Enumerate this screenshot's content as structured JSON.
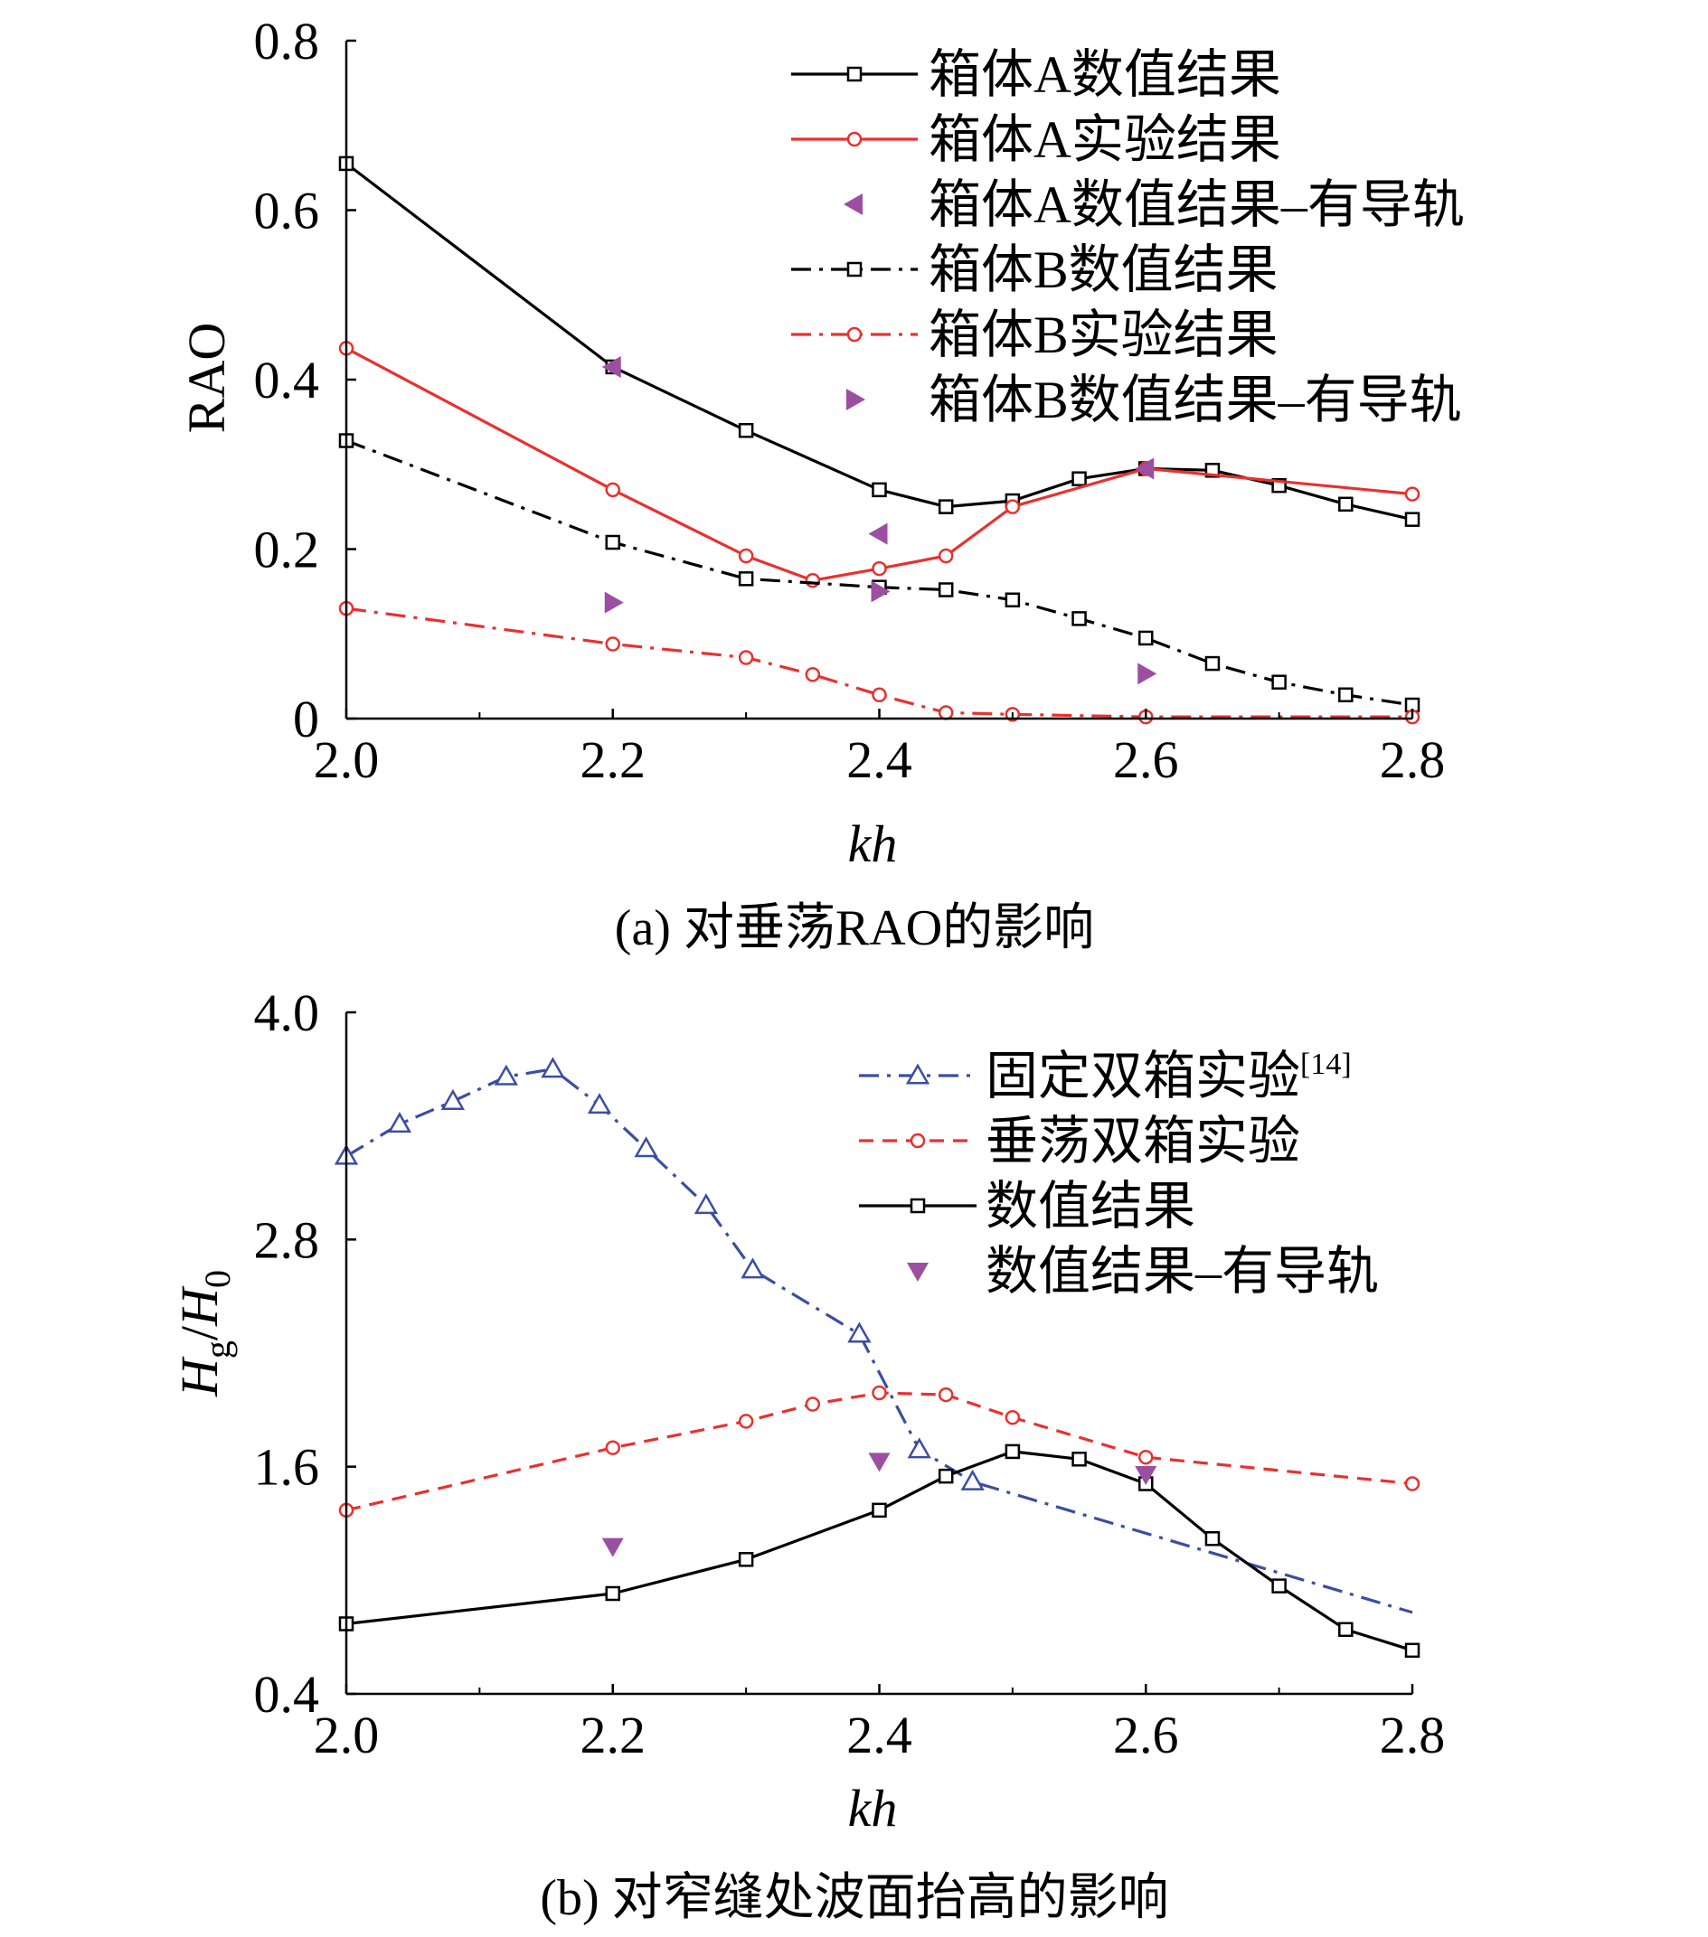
{
  "chart_data": [
    {
      "type": "line",
      "id": "a",
      "caption": "(a) 对垂荡RAO的影响",
      "xlabel": "kh",
      "ylabel": "RAO",
      "xlim": [
        2.0,
        2.8
      ],
      "ylim": [
        0,
        0.8
      ],
      "xticks": [
        2.0,
        2.2,
        2.4,
        2.6,
        2.8
      ],
      "xtick_labels": [
        "2.0",
        "2.2",
        "2.4",
        "2.6",
        "2.8"
      ],
      "yticks": [
        0,
        0.2,
        0.4,
        0.6,
        0.8
      ],
      "ytick_labels": [
        "0",
        "0.2",
        "0.4",
        "0.6",
        "0.8"
      ],
      "legend_position": "top-right",
      "series": [
        {
          "name": "箱体A数值结果",
          "color": "#000000",
          "line": "solid",
          "marker": "square",
          "x": [
            2.0,
            2.2,
            2.3,
            2.4,
            2.45,
            2.5,
            2.55,
            2.6,
            2.65,
            2.7,
            2.75,
            2.8
          ],
          "y": [
            0.655,
            0.415,
            0.34,
            0.27,
            0.25,
            0.257,
            0.283,
            0.295,
            0.293,
            0.275,
            0.253,
            0.235
          ]
        },
        {
          "name": "箱体A实验结果",
          "color": "#e8312f",
          "line": "solid",
          "marker": "circle",
          "x": [
            2.0,
            2.2,
            2.3,
            2.35,
            2.4,
            2.45,
            2.5,
            2.6,
            2.8
          ],
          "y": [
            0.437,
            0.27,
            0.192,
            0.163,
            0.177,
            0.192,
            0.25,
            0.295,
            0.265
          ]
        },
        {
          "name": "箱体A数值结果–有导轨",
          "color": "#9c4fa0",
          "line": "none",
          "marker": "triangle-left",
          "x": [
            2.2,
            2.4,
            2.6
          ],
          "y": [
            0.415,
            0.218,
            0.295
          ]
        },
        {
          "name": "箱体B数值结果",
          "color": "#000000",
          "line": "dashdot",
          "marker": "square",
          "x": [
            2.0,
            2.2,
            2.3,
            2.4,
            2.45,
            2.5,
            2.55,
            2.6,
            2.65,
            2.7,
            2.75,
            2.8
          ],
          "y": [
            0.328,
            0.208,
            0.165,
            0.155,
            0.152,
            0.14,
            0.118,
            0.095,
            0.065,
            0.043,
            0.028,
            0.016
          ]
        },
        {
          "name": "箱体B实验结果",
          "color": "#e8312f",
          "line": "dashdot",
          "marker": "circle",
          "x": [
            2.0,
            2.2,
            2.3,
            2.35,
            2.4,
            2.45,
            2.5,
            2.6,
            2.8
          ],
          "y": [
            0.13,
            0.088,
            0.072,
            0.052,
            0.028,
            0.007,
            0.005,
            0.002,
            0.002
          ]
        },
        {
          "name": "箱体B数值结果–有导轨",
          "color": "#9c4fa0",
          "line": "none",
          "marker": "triangle-right",
          "x": [
            2.2,
            2.4,
            2.6
          ],
          "y": [
            0.137,
            0.15,
            0.053
          ]
        }
      ]
    },
    {
      "type": "line",
      "id": "b",
      "caption": "(b) 对窄缝处波面抬高的影响",
      "xlabel": "kh",
      "ylabel_main": "H",
      "ylabel_sub": "g",
      "ylabel_slash": "/",
      "ylabel_main2": "H",
      "ylabel_sub2": "0",
      "xlim": [
        2.0,
        2.8
      ],
      "ylim": [
        0.4,
        4.0
      ],
      "xticks": [
        2.0,
        2.2,
        2.4,
        2.6,
        2.8
      ],
      "xtick_labels": [
        "2.0",
        "2.2",
        "2.4",
        "2.6",
        "2.8"
      ],
      "yticks": [
        0.4,
        1.6,
        2.8,
        4.0
      ],
      "ytick_labels": [
        "0.4",
        "1.6",
        "2.8",
        "4.0"
      ],
      "legend_position": "top-right",
      "series": [
        {
          "name": "固定双箱实验",
          "name_sup": "[14]",
          "color": "#3b4ea0",
          "line": "dashdot",
          "marker": "triangle-up",
          "x": [
            2.0,
            2.04,
            2.08,
            2.12,
            2.155,
            2.19,
            2.225,
            2.27,
            2.305,
            2.385,
            2.43,
            2.47,
            2.8
          ],
          "y": [
            3.24,
            3.41,
            3.53,
            3.66,
            3.7,
            3.51,
            3.28,
            2.98,
            2.64,
            2.3,
            1.69,
            1.52,
            0.83
          ]
        },
        {
          "name": "垂荡双箱实验",
          "color": "#e8312f",
          "line": "dashed",
          "marker": "circle",
          "x": [
            2.0,
            2.2,
            2.3,
            2.35,
            2.4,
            2.45,
            2.5,
            2.6,
            2.8
          ],
          "y": [
            1.37,
            1.7,
            1.84,
            1.93,
            1.99,
            1.98,
            1.86,
            1.65,
            1.51
          ]
        },
        {
          "name": "数值结果",
          "color": "#000000",
          "line": "solid",
          "marker": "square",
          "x": [
            2.0,
            2.2,
            2.3,
            2.4,
            2.45,
            2.5,
            2.55,
            2.6,
            2.65,
            2.7,
            2.75,
            2.8
          ],
          "y": [
            0.77,
            0.93,
            1.11,
            1.37,
            1.55,
            1.68,
            1.64,
            1.51,
            1.22,
            0.97,
            0.74,
            0.63
          ]
        },
        {
          "name": "数值结果–有导轨",
          "color": "#9c4fa0",
          "line": "none",
          "marker": "triangle-down",
          "x": [
            2.2,
            2.4,
            2.6
          ],
          "y": [
            1.18,
            1.63,
            1.56
          ]
        }
      ]
    }
  ]
}
